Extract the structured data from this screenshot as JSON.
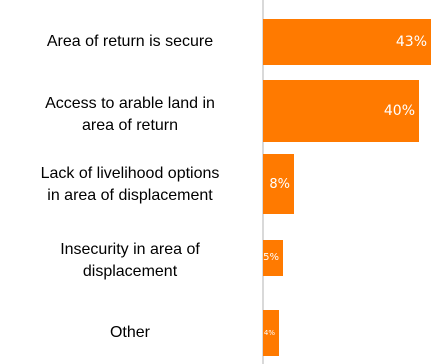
{
  "chart_data": {
    "type": "bar",
    "orientation": "horizontal",
    "categories": [
      "Area of return is secure",
      "Access to arable land in\narea of return",
      "Lack of livelihood options\nin area of displacement",
      "Insecurity in area of\ndisplacement",
      "Other"
    ],
    "values": [
      43,
      40,
      8,
      5,
      4
    ],
    "value_labels": [
      "43%",
      "40%",
      "8%",
      "5%",
      "4%"
    ],
    "bar_color": "#ff7a00",
    "label_color": "#ffffff",
    "xlim": [
      0,
      43
    ],
    "grid": false,
    "legend": false
  }
}
